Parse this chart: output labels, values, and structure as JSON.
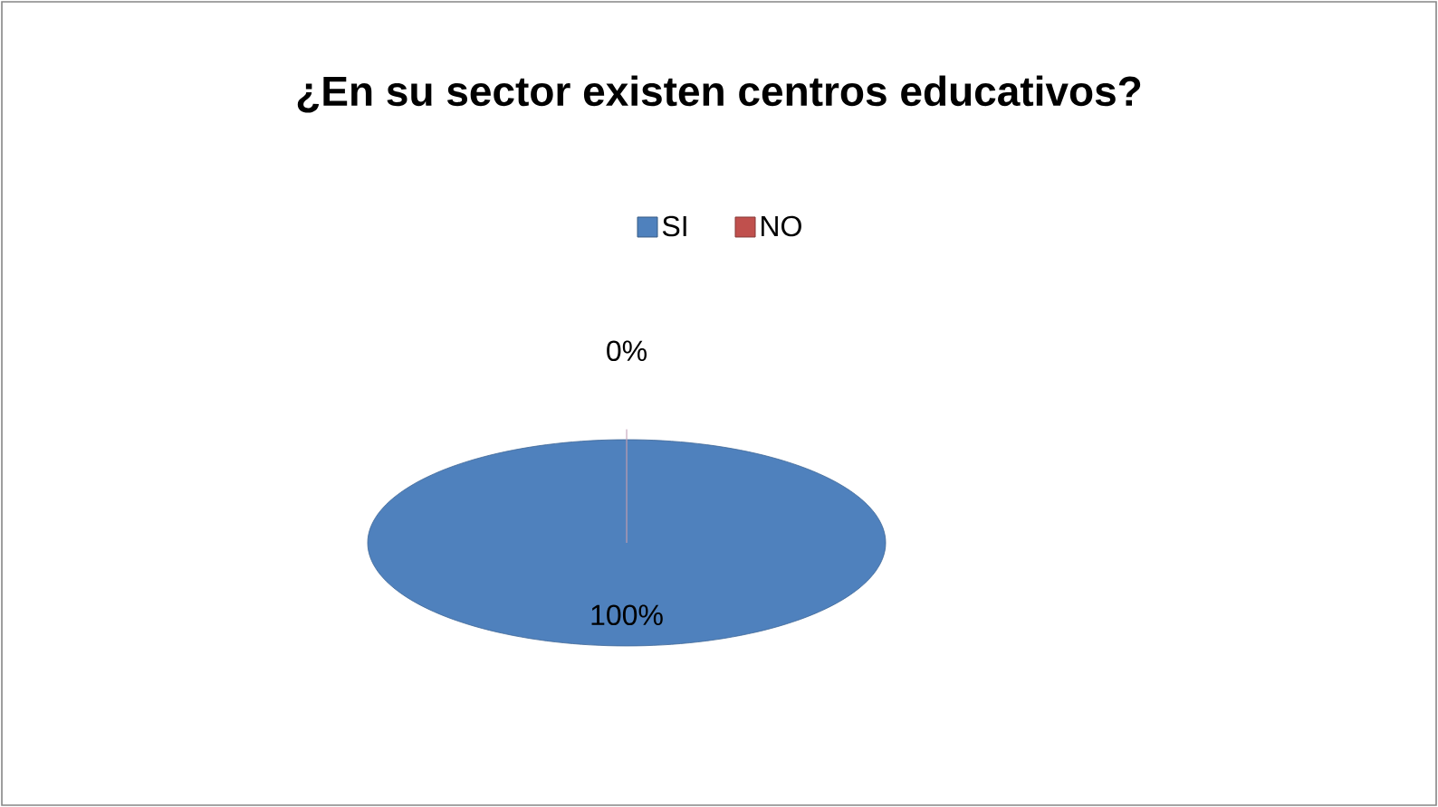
{
  "chart_data": {
    "type": "pie",
    "title": "¿En su sector existen centros educativos?",
    "categories": [
      "SI",
      "NO"
    ],
    "values": [
      100,
      0
    ],
    "colors": [
      "#4f81bd",
      "#c0504d"
    ],
    "value_labels": [
      "100%",
      "0%"
    ],
    "legend": "top"
  }
}
